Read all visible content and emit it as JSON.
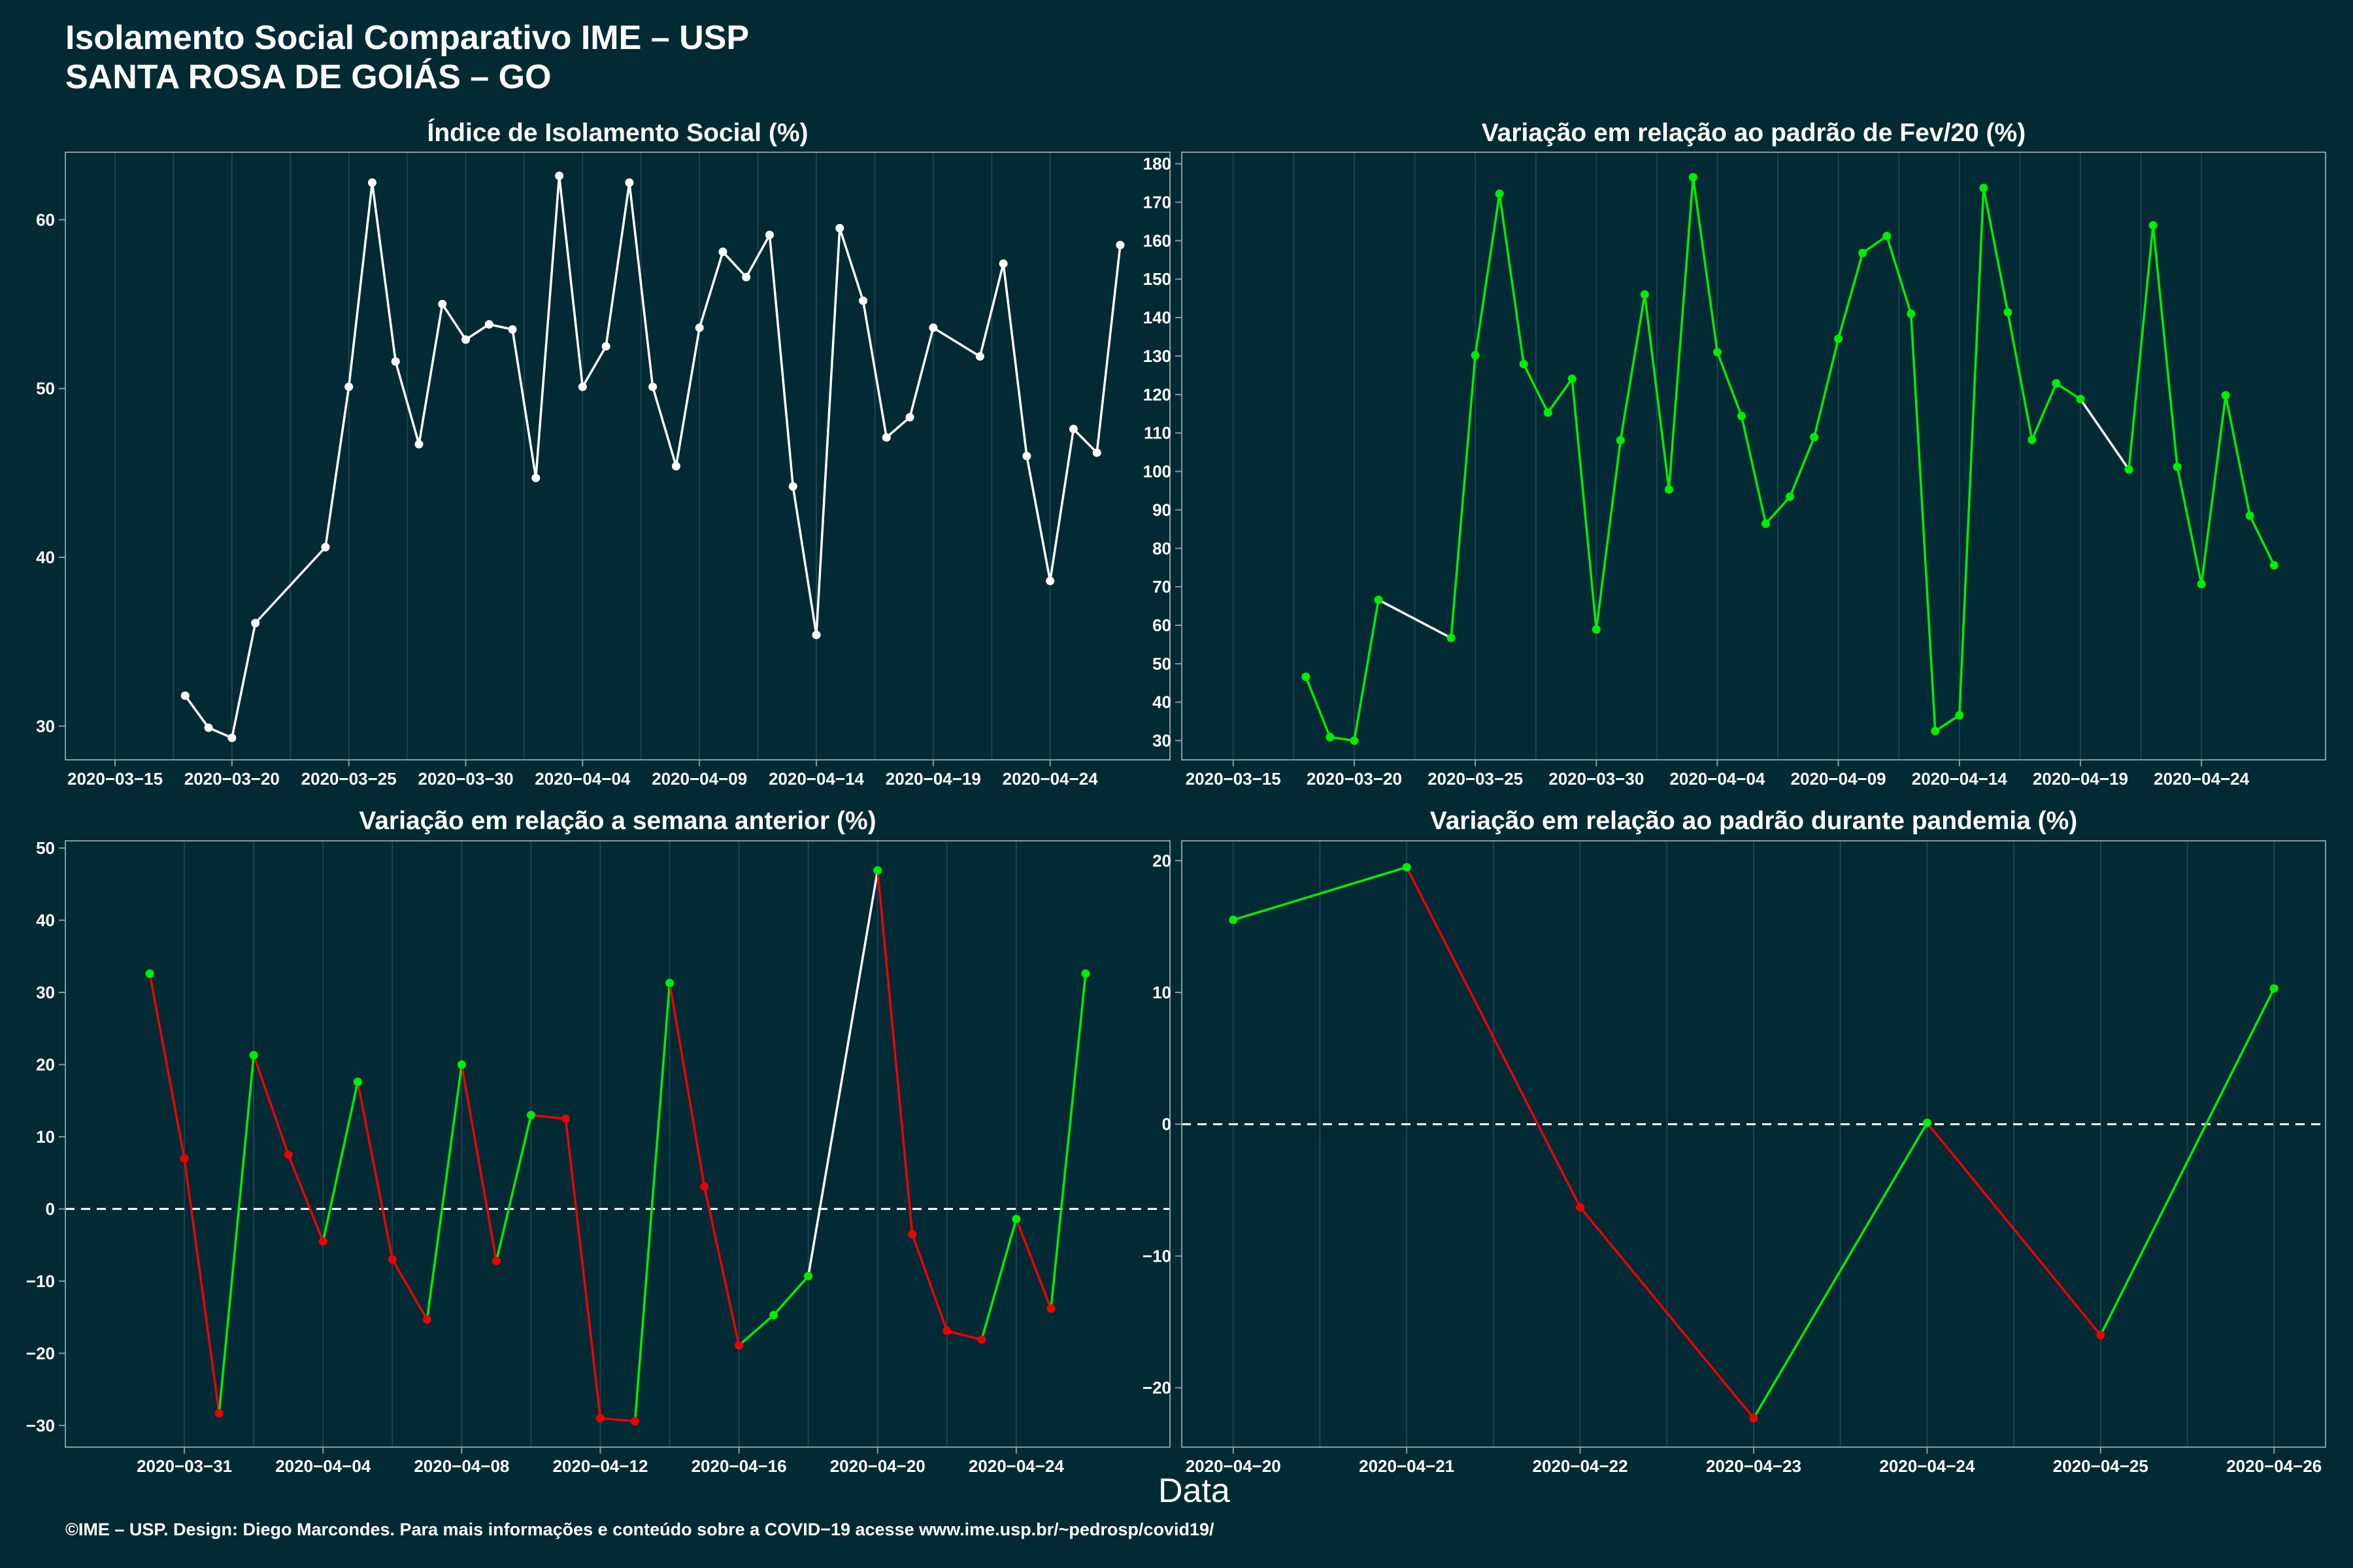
{
  "header": {
    "title_line1": "Isolamento Social Comparativo IME – USP",
    "title_line2": "SANTA ROSA DE GOIÁS – GO"
  },
  "footer": "©IME – USP. Design: Diego Marcondes. Para mais informações e conteúdo sobre a COVID−19 acesse www.ime.usp.br/~pedrosp/covid19/",
  "x_axis_label": "Data",
  "colors": {
    "background": "#022a35",
    "white": "#ffffff",
    "green": "#00ee00",
    "red": "#ee0000",
    "grid": "#1d4450",
    "axis": "#8a9aa0"
  },
  "chart_data": [
    {
      "type": "line",
      "title": "Índice de Isolamento Social (%)",
      "x_range": [
        "2020-03-15",
        "2020-04-27"
      ],
      "x_ticks": [
        "2020-03-15",
        "2020-03-20",
        "2020-03-25",
        "2020-03-30",
        "2020-04-04",
        "2020-04-09",
        "2020-04-14",
        "2020-04-19",
        "2020-04-24"
      ],
      "ylim": [
        28,
        64
      ],
      "y_ticks": [
        30,
        40,
        50,
        60
      ],
      "color_mode": "white",
      "series": [
        {
          "points": [
            [
              "2020-03-18",
              31.8
            ],
            [
              "2020-03-19",
              29.9
            ],
            [
              "2020-03-20",
              29.3
            ],
            [
              "2020-03-21",
              36.1
            ],
            [
              "2020-03-24",
              40.6
            ],
            [
              "2020-03-25",
              50.1
            ],
            [
              "2020-03-26",
              62.2
            ],
            [
              "2020-03-27",
              51.6
            ],
            [
              "2020-03-28",
              46.7
            ],
            [
              "2020-03-29",
              55.0
            ],
            [
              "2020-03-30",
              52.9
            ],
            [
              "2020-03-31",
              53.8
            ],
            [
              "2020-04-01",
              53.5
            ],
            [
              "2020-04-02",
              44.7
            ],
            [
              "2020-04-03",
              62.6
            ],
            [
              "2020-04-04",
              50.1
            ],
            [
              "2020-04-05",
              52.5
            ],
            [
              "2020-04-06",
              62.2
            ],
            [
              "2020-04-07",
              50.1
            ],
            [
              "2020-04-08",
              45.4
            ],
            [
              "2020-04-09",
              53.6
            ],
            [
              "2020-04-10",
              58.1
            ],
            [
              "2020-04-11",
              56.6
            ],
            [
              "2020-04-12",
              59.1
            ],
            [
              "2020-04-13",
              44.2
            ],
            [
              "2020-04-14",
              35.4
            ],
            [
              "2020-04-15",
              59.5
            ],
            [
              "2020-04-16",
              55.2
            ],
            [
              "2020-04-17",
              47.1
            ],
            [
              "2020-04-18",
              48.3
            ],
            [
              "2020-04-19",
              53.6
            ],
            [
              "2020-04-21",
              51.9
            ],
            [
              "2020-04-22",
              57.4
            ],
            [
              "2020-04-23",
              46.0
            ],
            [
              "2020-04-24",
              38.6
            ],
            [
              "2020-04-25",
              47.6
            ],
            [
              "2020-04-26",
              46.2
            ],
            [
              "2020-04-27",
              58.5
            ]
          ]
        }
      ]
    },
    {
      "type": "line",
      "title": "Variação em relação ao padrão de Fev/20 (%)",
      "x_range": [
        "2020-03-15",
        "2020-04-27"
      ],
      "x_ticks": [
        "2020-03-15",
        "2020-03-20",
        "2020-03-25",
        "2020-03-30",
        "2020-04-04",
        "2020-04-09",
        "2020-04-14",
        "2020-04-19",
        "2020-04-24"
      ],
      "ylim": [
        25,
        183
      ],
      "y_ticks": [
        30,
        40,
        50,
        60,
        70,
        80,
        90,
        100,
        110,
        120,
        130,
        140,
        150,
        160,
        170,
        180
      ],
      "color_mode": "green_gaps",
      "series": [
        {
          "points": [
            [
              "2020-03-18",
              46.6
            ],
            [
              "2020-03-19",
              30.9
            ],
            [
              "2020-03-20",
              30.0
            ],
            [
              "2020-03-21",
              66.6
            ],
            [
              "2020-03-24",
              56.7
            ],
            [
              "2020-03-25",
              130.2
            ],
            [
              "2020-03-26",
              172.2
            ],
            [
              "2020-03-27",
              127.9
            ],
            [
              "2020-03-28",
              115.3
            ],
            [
              "2020-03-29",
              124.1
            ],
            [
              "2020-03-30",
              58.9
            ],
            [
              "2020-03-31",
              108.1
            ],
            [
              "2020-04-01",
              146.0
            ],
            [
              "2020-04-02",
              95.3
            ],
            [
              "2020-04-03",
              176.5
            ],
            [
              "2020-04-04",
              131.0
            ],
            [
              "2020-04-05",
              114.4
            ],
            [
              "2020-04-06",
              86.4
            ],
            [
              "2020-04-07",
              93.4
            ],
            [
              "2020-04-08",
              108.9
            ],
            [
              "2020-04-09",
              134.5
            ],
            [
              "2020-04-10",
              156.8
            ],
            [
              "2020-04-11",
              161.2
            ],
            [
              "2020-04-12",
              141.0
            ],
            [
              "2020-04-13",
              32.5
            ],
            [
              "2020-04-14",
              36.6
            ],
            [
              "2020-04-15",
              173.7
            ],
            [
              "2020-04-16",
              141.4
            ],
            [
              "2020-04-17",
              108.2
            ],
            [
              "2020-04-18",
              122.9
            ],
            [
              "2020-04-19",
              118.8
            ],
            [
              "2020-04-21",
              100.5
            ],
            [
              "2020-04-22",
              164.0
            ],
            [
              "2020-04-23",
              101.2
            ],
            [
              "2020-04-24",
              70.7
            ],
            [
              "2020-04-25",
              119.8
            ],
            [
              "2020-04-26",
              88.5
            ],
            [
              "2020-04-27",
              75.6
            ]
          ]
        }
      ]
    },
    {
      "type": "line",
      "title": "Variação em relação a semana anterior (%)",
      "x_range": [
        "2020-03-29",
        "2020-04-27"
      ],
      "x_ticks": [
        "2020-03-31",
        "2020-04-04",
        "2020-04-08",
        "2020-04-12",
        "2020-04-16",
        "2020-04-20",
        "2020-04-24"
      ],
      "ylim": [
        -33,
        51
      ],
      "y_ticks": [
        -30,
        -20,
        -10,
        0,
        10,
        20,
        30,
        40,
        50
      ],
      "zero_line": true,
      "color_mode": "up_down",
      "series": [
        {
          "points": [
            [
              "2020-03-30",
              32.6
            ],
            [
              "2020-03-31",
              7.0
            ],
            [
              "2020-04-01",
              -28.3
            ],
            [
              "2020-04-02",
              21.3
            ],
            [
              "2020-04-03",
              7.5
            ],
            [
              "2020-04-04",
              -4.5
            ],
            [
              "2020-04-05",
              17.6
            ],
            [
              "2020-04-06",
              -7.0
            ],
            [
              "2020-04-07",
              -15.3
            ],
            [
              "2020-04-08",
              20.0
            ],
            [
              "2020-04-09",
              -7.2
            ],
            [
              "2020-04-10",
              13.0
            ],
            [
              "2020-04-11",
              12.5
            ],
            [
              "2020-04-12",
              -29.0
            ],
            [
              "2020-04-13",
              -29.4
            ],
            [
              "2020-04-14",
              31.3
            ],
            [
              "2020-04-15",
              3.1
            ],
            [
              "2020-04-16",
              -18.9
            ],
            [
              "2020-04-17",
              -14.7
            ],
            [
              "2020-04-18",
              -9.3
            ],
            [
              "2020-04-20",
              46.9
            ],
            [
              "2020-04-21",
              -3.5
            ],
            [
              "2020-04-22",
              -16.9
            ],
            [
              "2020-04-23",
              -18.1
            ],
            [
              "2020-04-24",
              -1.4
            ],
            [
              "2020-04-25",
              -13.8
            ],
            [
              "2020-04-26",
              32.6
            ]
          ]
        }
      ]
    },
    {
      "type": "line",
      "title": "Variação em relação ao padrão durante pandemia (%)",
      "x_range": [
        "2020-04-20",
        "2020-04-26"
      ],
      "x_ticks": [
        "2020-04-20",
        "2020-04-21",
        "2020-04-22",
        "2020-04-23",
        "2020-04-24",
        "2020-04-25",
        "2020-04-26"
      ],
      "ylim": [
        -24.5,
        21.5
      ],
      "y_ticks": [
        -20,
        -10,
        0,
        10,
        20
      ],
      "zero_line": true,
      "color_mode": "up_down",
      "series": [
        {
          "points": [
            [
              "2020-04-20",
              15.5
            ],
            [
              "2020-04-21",
              19.5
            ],
            [
              "2020-04-22",
              -6.3
            ],
            [
              "2020-04-23",
              -22.3
            ],
            [
              "2020-04-24",
              0.1
            ],
            [
              "2020-04-25",
              -16.0
            ],
            [
              "2020-04-26",
              10.3
            ]
          ]
        }
      ]
    }
  ]
}
